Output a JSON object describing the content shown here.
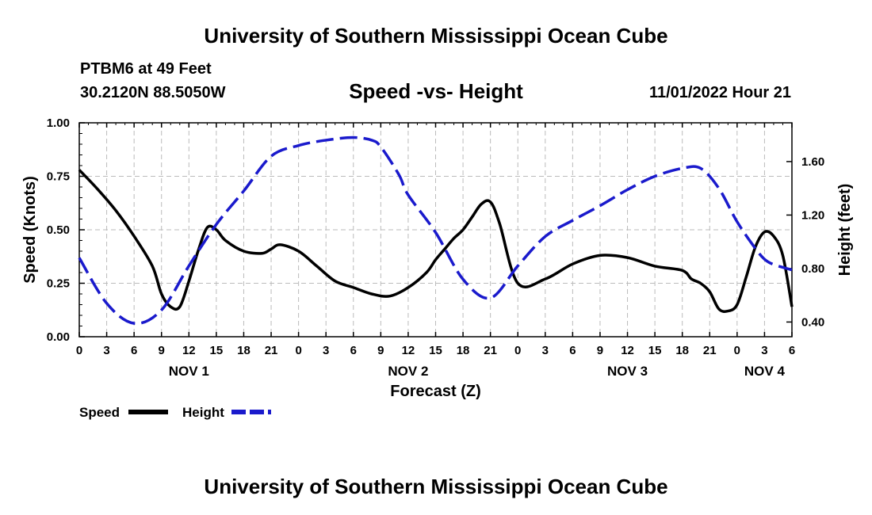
{
  "header": {
    "title": "University of Southern Mississippi Ocean Cube",
    "station": "PTBM6 at 49 Feet",
    "coords": "30.2120N  88.5050W",
    "chart_title": "Speed -vs- Height",
    "datetime": "11/01/2022 Hour 21"
  },
  "footer": {
    "title": "University of Southern Mississippi Ocean Cube"
  },
  "colors": {
    "speed": "#000000",
    "height": "#1a1acc",
    "grid": "#bbbbbb"
  },
  "chart_data": {
    "type": "line",
    "title": "Speed -vs- Height",
    "xlabel": "Forecast (Z)",
    "ylabel": "Speed (Knots)",
    "y2label": "Height (feet)",
    "x_ticks": [
      "0",
      "3",
      "6",
      "9",
      "12",
      "15",
      "18",
      "21",
      "0",
      "3",
      "6",
      "9",
      "12",
      "15",
      "18",
      "21",
      "0",
      "3",
      "6",
      "9",
      "12",
      "15",
      "18",
      "21",
      "0",
      "3",
      "6"
    ],
    "day_labels": [
      {
        "label": "NOV 1",
        "hour": 12
      },
      {
        "label": "NOV 2",
        "hour": 36
      },
      {
        "label": "NOV 3",
        "hour": 60
      },
      {
        "label": "NOV 4",
        "hour": 75
      }
    ],
    "x_range": [
      0,
      78
    ],
    "ylim": [
      0,
      1.0
    ],
    "y_ticks": [
      "0.00",
      "0.25",
      "0.50",
      "0.75",
      "1.00"
    ],
    "y2lim": [
      0.29,
      1.89
    ],
    "y2_ticks": [
      "0.40",
      "0.80",
      "1.20",
      "1.60"
    ],
    "legend": [
      "Speed",
      "Height"
    ],
    "legend_position": "bottom-left",
    "series": [
      {
        "name": "Speed",
        "axis": "left",
        "style": "solid",
        "x": [
          0,
          2,
          4,
          6,
          8,
          9,
          10,
          11,
          12,
          13,
          14,
          15,
          16,
          18,
          20,
          21,
          22,
          24,
          26,
          28,
          30,
          32,
          34,
          36,
          38,
          39,
          40,
          41,
          42,
          43,
          44,
          45,
          46,
          48,
          51,
          54,
          57,
          60,
          63,
          66,
          67,
          68,
          69,
          70,
          71,
          72,
          73,
          74,
          75,
          76,
          77,
          78
        ],
        "y": [
          0.78,
          0.69,
          0.59,
          0.47,
          0.33,
          0.2,
          0.14,
          0.14,
          0.26,
          0.4,
          0.51,
          0.5,
          0.45,
          0.4,
          0.39,
          0.41,
          0.43,
          0.4,
          0.33,
          0.26,
          0.23,
          0.2,
          0.19,
          0.23,
          0.3,
          0.36,
          0.41,
          0.46,
          0.5,
          0.56,
          0.62,
          0.63,
          0.53,
          0.25,
          0.27,
          0.34,
          0.38,
          0.37,
          0.33,
          0.31,
          0.27,
          0.25,
          0.21,
          0.13,
          0.12,
          0.15,
          0.28,
          0.42,
          0.49,
          0.47,
          0.38,
          0.14
        ]
      },
      {
        "name": "Height",
        "axis": "right",
        "style": "dashed",
        "x": [
          0,
          3,
          6,
          9,
          12,
          15,
          18,
          21,
          24,
          27,
          30,
          32,
          33,
          35,
          36,
          39,
          42,
          45,
          48,
          51,
          54,
          57,
          60,
          63,
          66,
          68,
          70,
          72,
          74,
          75,
          76,
          78
        ],
        "y": [
          0.88,
          0.54,
          0.39,
          0.49,
          0.82,
          1.13,
          1.38,
          1.64,
          1.72,
          1.76,
          1.78,
          1.76,
          1.71,
          1.5,
          1.35,
          1.07,
          0.72,
          0.58,
          0.82,
          1.04,
          1.16,
          1.27,
          1.39,
          1.49,
          1.55,
          1.55,
          1.4,
          1.15,
          0.95,
          0.87,
          0.83,
          0.79
        ]
      }
    ]
  }
}
